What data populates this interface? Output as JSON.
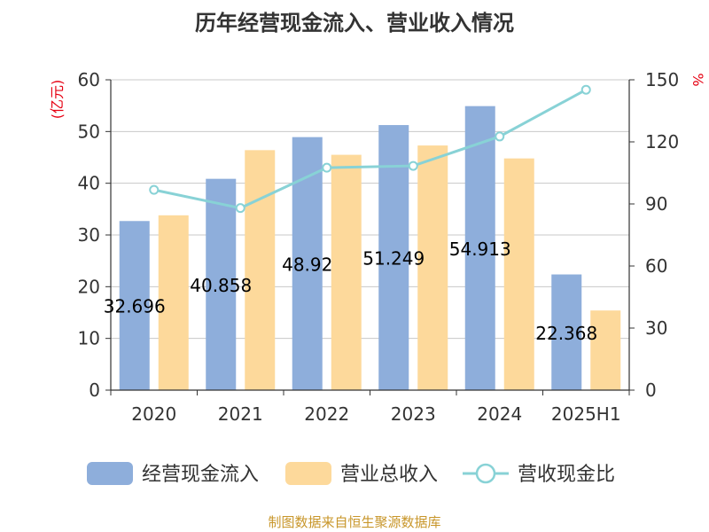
{
  "chart_data": {
    "type": "bar",
    "title": "历年经营现金流入、营业收入情况",
    "categories": [
      "2020",
      "2021",
      "2022",
      "2023",
      "2024",
      "2025H1"
    ],
    "left_axis": {
      "unit": "(亿元)",
      "ylim": [
        0,
        60
      ],
      "ticks": [
        "0",
        "10",
        "20",
        "30",
        "40",
        "50",
        "60"
      ]
    },
    "right_axis": {
      "unit": "%",
      "ylim": [
        0,
        150
      ],
      "ticks": [
        "0",
        "30",
        "60",
        "90",
        "120",
        "150"
      ]
    },
    "series": [
      {
        "name": "经营现金流入",
        "type": "bar",
        "axis": "left",
        "color": "#8eaedb",
        "values": [
          32.696,
          40.858,
          48.92,
          51.249,
          54.913,
          22.368
        ],
        "labels": [
          "32.696",
          "40.858",
          "48.92",
          "51.249",
          "54.913",
          "22.368"
        ]
      },
      {
        "name": "营业总收入",
        "type": "bar",
        "axis": "left",
        "color": "#fdd99b",
        "values": [
          33.8,
          46.4,
          45.5,
          47.3,
          44.8,
          15.4
        ]
      },
      {
        "name": "营收现金比",
        "type": "line",
        "axis": "right",
        "color": "#88d2d6",
        "values": [
          96.8,
          88.0,
          107.5,
          108.4,
          122.6,
          145.2
        ]
      }
    ],
    "grid": true,
    "legend_position": "bottom"
  },
  "source_note": "制图数据来自恒生聚源数据库"
}
